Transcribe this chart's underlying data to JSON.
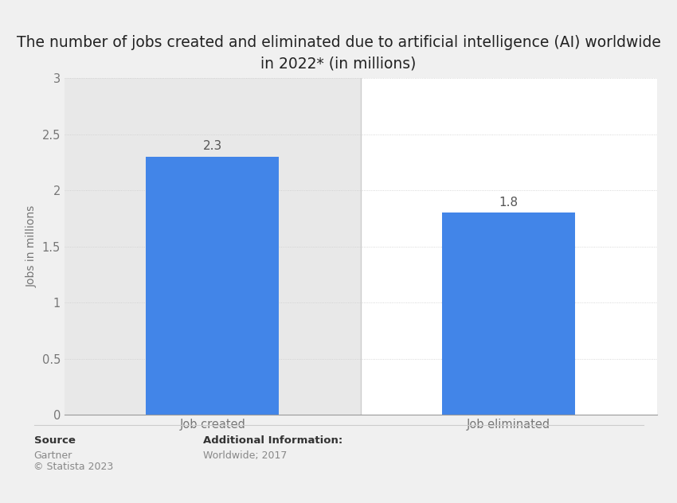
{
  "title": "The number of jobs created and eliminated due to artificial intelligence (AI) worldwide\nin 2022* (in millions)",
  "categories": [
    "Job created",
    "Job eliminated"
  ],
  "values": [
    2.3,
    1.8
  ],
  "bar_color": "#4285e8",
  "ylabel": "Jobs in millions",
  "ylim": [
    0,
    3
  ],
  "yticks": [
    0,
    0.5,
    1,
    1.5,
    2,
    2.5,
    3
  ],
  "bar_labels": [
    "2.3",
    "1.8"
  ],
  "source_label": "Source",
  "source_text1": "Gartner",
  "source_text2": "© Statista 2023",
  "additional_label": "Additional Information:",
  "additional_text": "Worldwide; 2017",
  "background_color": "#f0f0f0",
  "left_col_bg": "#e8e8e8",
  "right_col_bg": "#ffffff",
  "title_fontsize": 13.5,
  "axis_label_fontsize": 10,
  "tick_fontsize": 10.5,
  "bar_label_fontsize": 11,
  "footer_label_fontsize": 9.5,
  "footer_text_fontsize": 9
}
